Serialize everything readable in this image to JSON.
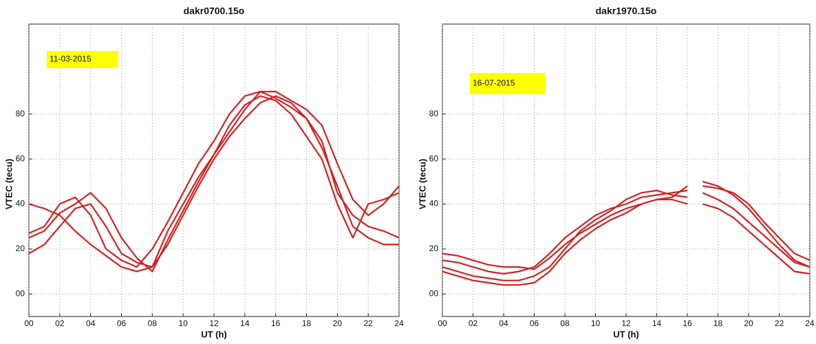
{
  "chart_data": [
    {
      "type": "line",
      "title": "dakr0700.15o",
      "x_label": "UT (h)",
      "y_label": "VTEC (tecu)",
      "annotation": "11-03-2015",
      "annotation_color": "#ffff00",
      "xlim": [
        0,
        24
      ],
      "ylim": [
        -10,
        120
      ],
      "grid": true,
      "xticks": [
        {
          "value": 0,
          "label": "00"
        },
        {
          "value": 2,
          "label": "02"
        },
        {
          "value": 4,
          "label": "04"
        },
        {
          "value": 6,
          "label": "06"
        },
        {
          "value": 8,
          "label": "08"
        },
        10,
        12,
        14,
        16,
        18,
        20,
        22,
        24
      ],
      "yticks": [
        {
          "value": 0,
          "label": "00"
        },
        20,
        40,
        60,
        80
      ],
      "series": [
        {
          "color": "#d42020",
          "x": [
            0,
            1,
            2,
            3,
            4,
            5,
            6,
            7,
            8,
            9,
            10,
            11,
            12,
            13,
            14,
            15,
            16,
            17,
            18,
            19,
            20,
            21,
            22,
            23,
            24
          ],
          "values": [
            27,
            30,
            40,
            43,
            35,
            20,
            15,
            12,
            20,
            32,
            45,
            58,
            68,
            80,
            88,
            90,
            87,
            83,
            78,
            68,
            45,
            35,
            30,
            28,
            25
          ]
        },
        {
          "color": "#d42020",
          "x": [
            0,
            1,
            2,
            3,
            4,
            5,
            6,
            7,
            8,
            9,
            10,
            11,
            12,
            13,
            14,
            15,
            16,
            17,
            18,
            19,
            20,
            21,
            22,
            23,
            24
          ],
          "values": [
            18,
            22,
            30,
            38,
            40,
            30,
            18,
            14,
            12,
            28,
            40,
            52,
            62,
            72,
            82,
            90,
            90,
            86,
            82,
            75,
            58,
            42,
            35,
            40,
            48
          ]
        },
        {
          "color": "#d42020",
          "x": [
            0,
            1,
            2,
            3,
            4,
            5,
            6,
            7,
            8,
            9,
            10,
            11,
            12,
            13,
            14,
            15,
            16,
            17,
            18,
            19,
            20,
            21,
            22,
            23,
            24
          ],
          "values": [
            40,
            38,
            35,
            28,
            22,
            17,
            12,
            10,
            12,
            22,
            35,
            48,
            60,
            70,
            78,
            85,
            88,
            85,
            78,
            65,
            48,
            30,
            25,
            22,
            22
          ]
        },
        {
          "color": "#d42020",
          "x": [
            0,
            1,
            2,
            3,
            4,
            5,
            6,
            7,
            8,
            9,
            10,
            11,
            12,
            13,
            14,
            15,
            16,
            17,
            18,
            19,
            20,
            21,
            22,
            23,
            24
          ],
          "values": [
            25,
            28,
            36,
            40,
            45,
            38,
            25,
            16,
            10,
            24,
            37,
            50,
            62,
            75,
            84,
            88,
            86,
            80,
            70,
            60,
            40,
            25,
            40,
            42,
            45
          ]
        }
      ]
    },
    {
      "type": "line",
      "title": "dakr1970.15o",
      "x_label": "UT (h)",
      "y_label": "VTEC (tecu)",
      "annotation": "16-07-2015",
      "annotation_color": "#ffff00",
      "xlim": [
        0,
        24
      ],
      "ylim": [
        -10,
        120
      ],
      "grid": true,
      "xticks": [
        {
          "value": 0,
          "label": "00"
        },
        {
          "value": 2,
          "label": "02"
        },
        {
          "value": 4,
          "label": "04"
        },
        {
          "value": 6,
          "label": "06"
        },
        {
          "value": 8,
          "label": "08"
        },
        10,
        12,
        14,
        16,
        18,
        20,
        22,
        24
      ],
      "yticks": [
        {
          "value": 0,
          "label": "00"
        },
        20,
        40,
        60,
        80
      ],
      "series": [
        {
          "color": "#d42020",
          "x": [
            0,
            1,
            2,
            3,
            4,
            5,
            6,
            7,
            8,
            9,
            10,
            11,
            12,
            13,
            14,
            15,
            16,
            16.5,
            17,
            18,
            19,
            20,
            21,
            22,
            23,
            24
          ],
          "values": [
            15,
            14,
            12,
            10,
            9,
            10,
            12,
            18,
            25,
            30,
            35,
            38,
            40,
            43,
            44,
            45,
            46,
            null,
            48,
            47,
            45,
            40,
            32,
            25,
            18,
            15
          ]
        },
        {
          "color": "#d42020",
          "x": [
            0,
            1,
            2,
            3,
            4,
            5,
            6,
            7,
            8,
            9,
            10,
            11,
            12,
            13,
            14,
            15,
            16,
            16.5,
            17,
            18,
            19,
            20,
            21,
            22,
            23,
            24
          ],
          "values": [
            12,
            10,
            8,
            7,
            6,
            6,
            8,
            12,
            20,
            28,
            33,
            37,
            42,
            45,
            46,
            44,
            43,
            null,
            50,
            48,
            44,
            38,
            30,
            22,
            15,
            12
          ]
        },
        {
          "color": "#d42020",
          "x": [
            0,
            1,
            2,
            3,
            4,
            5,
            6,
            7,
            8,
            9,
            10,
            11,
            12,
            13,
            14,
            15,
            16,
            16.5,
            17,
            18,
            19,
            20,
            21,
            22,
            23,
            24
          ],
          "values": [
            18,
            17,
            15,
            13,
            12,
            12,
            11,
            16,
            22,
            27,
            31,
            35,
            38,
            40,
            42,
            43,
            48,
            null,
            45,
            42,
            38,
            32,
            26,
            20,
            14,
            12
          ]
        },
        {
          "color": "#d42020",
          "x": [
            0,
            1,
            2,
            3,
            4,
            5,
            6,
            7,
            8,
            9,
            10,
            11,
            12,
            13,
            14,
            15,
            16,
            16.5,
            17,
            18,
            19,
            20,
            21,
            22,
            23,
            24
          ],
          "values": [
            10,
            8,
            6,
            5,
            4,
            4,
            5,
            10,
            18,
            24,
            29,
            33,
            36,
            40,
            42,
            42,
            40,
            null,
            40,
            38,
            34,
            28,
            22,
            16,
            10,
            9
          ]
        }
      ]
    }
  ]
}
